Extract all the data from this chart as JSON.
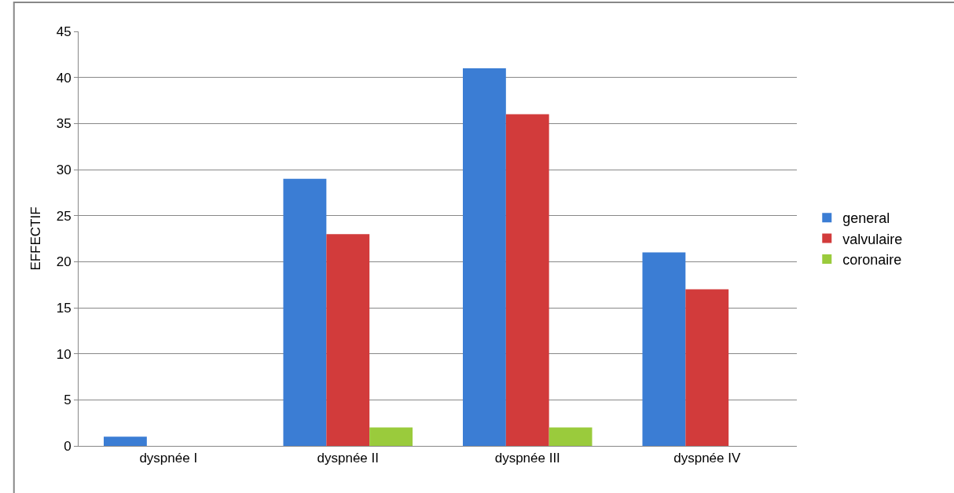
{
  "chart_data": {
    "type": "bar",
    "ylabel": "EFFECTIF",
    "categories": [
      "dyspnée I",
      "dyspnée II",
      "dyspnée III",
      "dyspnée IV"
    ],
    "series": [
      {
        "name": "general",
        "color": "#3b7dd4",
        "values": [
          1,
          29,
          41,
          21
        ]
      },
      {
        "name": "valvulaire",
        "color": "#d23b3b",
        "values": [
          0,
          23,
          36,
          17
        ]
      },
      {
        "name": "coronaire",
        "color": "#9acb3c",
        "values": [
          0,
          2,
          2,
          0
        ]
      }
    ],
    "ylim": [
      0,
      45
    ],
    "yticks": [
      0,
      5,
      10,
      15,
      20,
      25,
      30,
      35,
      40,
      45
    ],
    "grid": "y",
    "legend": "right"
  }
}
